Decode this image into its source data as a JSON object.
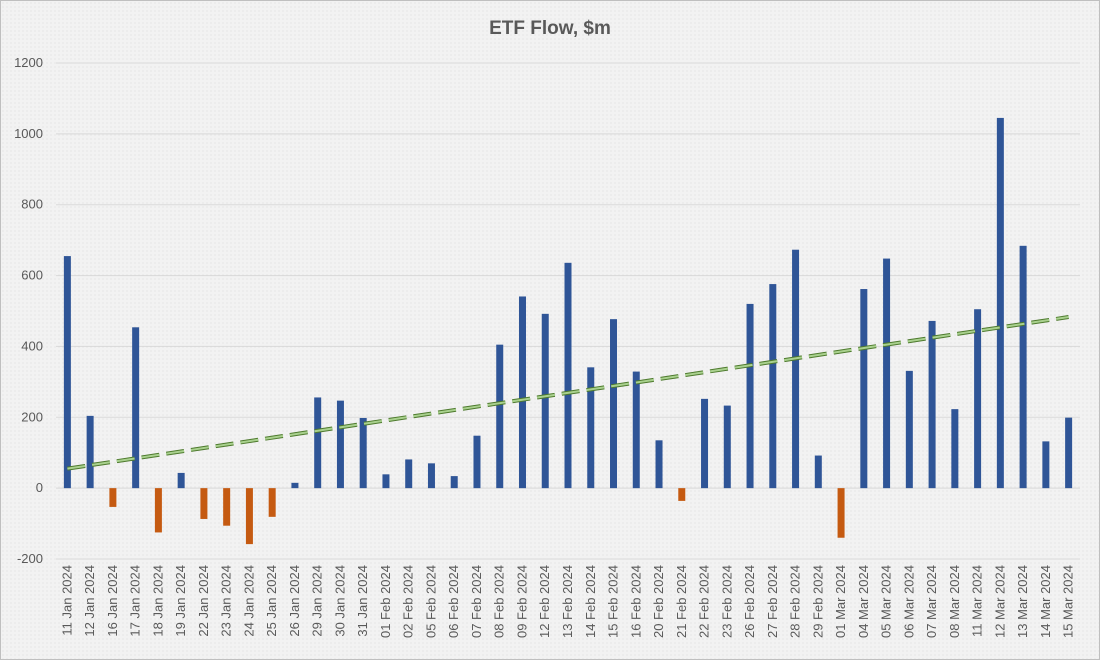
{
  "chart_data": {
    "type": "bar",
    "title": "ETF Flow, $m",
    "xlabel": "",
    "ylabel": "",
    "ylim": [
      -200,
      1200
    ],
    "yticks": [
      "1200",
      "1000",
      "800",
      "600",
      "400",
      "200",
      "0",
      "-200"
    ],
    "categories": [
      "11 Jan 2024",
      "12 Jan 2024",
      "16 Jan 2024",
      "17 Jan 2024",
      "18 Jan 2024",
      "19 Jan 2024",
      "22 Jan 2024",
      "23 Jan 2024",
      "24 Jan 2024",
      "25 Jan 2024",
      "26 Jan 2024",
      "29 Jan 2024",
      "30 Jan 2024",
      "31 Jan 2024",
      "01 Feb 2024",
      "02 Feb 2024",
      "05 Feb 2024",
      "06 Feb 2024",
      "07 Feb 2024",
      "08 Feb 2024",
      "09 Feb 2024",
      "12 Feb 2024",
      "13 Feb 2024",
      "14 Feb 2024",
      "15 Feb 2024",
      "16 Feb 2024",
      "20 Feb 2024",
      "21 Feb 2024",
      "22 Feb 2024",
      "23 Feb 2024",
      "26 Feb 2024",
      "27 Feb 2024",
      "28 Feb 2024",
      "29 Feb 2024",
      "01 Mar 2024",
      "04 Mar 2024",
      "05 Mar 2024",
      "06 Mar 2024",
      "07 Mar 2024",
      "08 Mar 2024",
      "11 Mar 2024",
      "12 Mar 2024",
      "13 Mar 2024",
      "14 Mar 2024",
      "15 Mar 2024"
    ],
    "values": [
      655,
      204,
      -53,
      454,
      -125,
      43,
      -87,
      -106,
      -158,
      -81,
      15,
      256,
      247,
      198,
      39,
      81,
      70,
      34,
      148,
      405,
      541,
      492,
      636,
      341,
      477,
      329,
      135,
      -36,
      252,
      233,
      520,
      576,
      673,
      92,
      -140,
      562,
      648,
      331,
      472,
      223,
      505,
      1045,
      684,
      132,
      199
    ],
    "trendline": {
      "style": "dashed",
      "start": 55,
      "end": 483
    },
    "colors": {
      "positive": "#2f5597",
      "negative": "#c55a11",
      "trend": "#7aa84f",
      "grid": "#d9d9d9"
    },
    "grid": true,
    "legend": "none"
  }
}
